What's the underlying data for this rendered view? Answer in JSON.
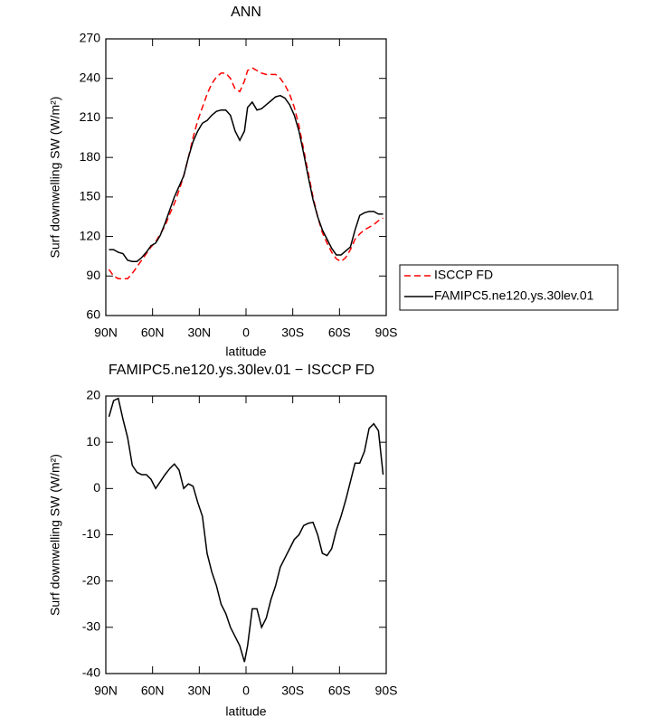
{
  "chart_data": [
    {
      "type": "line",
      "title": "ANN",
      "x_label": "latitude",
      "y_label": "Surf downwelling SW (W/m²)",
      "x": [
        88,
        85,
        82,
        79,
        76,
        73,
        70,
        67,
        64,
        61,
        58,
        55,
        52,
        49,
        46,
        43,
        40,
        37,
        34,
        31,
        28,
        25,
        22,
        19,
        16,
        13,
        10,
        7,
        4,
        1,
        -1,
        -4,
        -7,
        -10,
        -13,
        -16,
        -19,
        -22,
        -25,
        -28,
        -31,
        -34,
        -37,
        -40,
        -43,
        -46,
        -49,
        -52,
        -55,
        -58,
        -61,
        -64,
        -67,
        -70,
        -73,
        -76,
        -79,
        -82,
        -85,
        -88
      ],
      "series": [
        {
          "name": "ISCCP FD",
          "color": "#ff0000",
          "linestyle": "dashed",
          "values": [
            95,
            90,
            88,
            88,
            88,
            92,
            97,
            102,
            107,
            112,
            116,
            122,
            128,
            137,
            145,
            155,
            166,
            180,
            195,
            208,
            218,
            228,
            236,
            241,
            244,
            244,
            240,
            232,
            230,
            238,
            246,
            248,
            246,
            244,
            243,
            243,
            243,
            240,
            235,
            228,
            218,
            204,
            186,
            168,
            150,
            135,
            123,
            115,
            108,
            103,
            101,
            104,
            110,
            118,
            122,
            125,
            127,
            129,
            132,
            134
          ]
        },
        {
          "name": "FAMIPC5.ne120.ys.30lev.01",
          "color": "#000000",
          "linestyle": "solid",
          "values": [
            110,
            110,
            108,
            107,
            102,
            101,
            101,
            104,
            108,
            113,
            115,
            121,
            130,
            140,
            150,
            158,
            166,
            180,
            192,
            200,
            206,
            208,
            212,
            215,
            216,
            216,
            212,
            200,
            193,
            200,
            218,
            222,
            216,
            217,
            220,
            223,
            226,
            227,
            225,
            220,
            212,
            200,
            183,
            165,
            148,
            135,
            125,
            118,
            111,
            106,
            106,
            109,
            112,
            125,
            136,
            138,
            139,
            139,
            137,
            137
          ]
        }
      ],
      "xlim": [
        90,
        -90
      ],
      "xticks": [
        {
          "value": 90,
          "label": "90N"
        },
        {
          "value": 60,
          "label": "60N"
        },
        {
          "value": 30,
          "label": "30N"
        },
        0,
        {
          "value": -30,
          "label": "30S"
        },
        {
          "value": -60,
          "label": "60S"
        },
        {
          "value": -90,
          "label": "90S"
        }
      ],
      "ylim": [
        60,
        270
      ],
      "yticks": [
        60,
        90,
        120,
        150,
        180,
        210,
        240,
        270
      ],
      "legend": "right"
    },
    {
      "type": "line",
      "title": "FAMIPC5.ne120.ys.30lev.01 − ISCCP FD",
      "x_label": "latitude",
      "y_label": "Surf downwelling SW (W/m²)",
      "x": [
        88,
        85,
        82,
        79,
        76,
        73,
        70,
        67,
        64,
        61,
        58,
        55,
        52,
        49,
        46,
        43,
        40,
        37,
        34,
        31,
        28,
        25,
        22,
        19,
        16,
        13,
        10,
        7,
        4,
        1,
        -1,
        -4,
        -7,
        -10,
        -13,
        -16,
        -19,
        -22,
        -25,
        -28,
        -31,
        -34,
        -37,
        -40,
        -43,
        -46,
        -49,
        -52,
        -55,
        -58,
        -61,
        -64,
        -67,
        -70,
        -73,
        -76,
        -79,
        -82,
        -85,
        -88
      ],
      "series": [
        {
          "color": "#000000",
          "linestyle": "solid",
          "values": [
            15.5,
            19,
            19.5,
            15,
            11,
            5,
            3.5,
            3,
            3,
            2,
            0,
            1.5,
            3,
            4.3,
            5.3,
            4,
            0,
            1,
            0.5,
            -3,
            -6,
            -14,
            -18,
            -21,
            -25,
            -27,
            -30,
            -32,
            -34,
            -37.5,
            -34,
            -26,
            -26,
            -30,
            -28,
            -24,
            -21,
            -17,
            -15,
            -13,
            -11,
            -10,
            -8,
            -7.5,
            -7.3,
            -10,
            -14,
            -14.5,
            -13,
            -9,
            -6,
            -2.5,
            1.5,
            5.5,
            5.5,
            8,
            13,
            14,
            12.5,
            3
          ]
        }
      ],
      "xlim": [
        90,
        -90
      ],
      "xticks": [
        {
          "value": 90,
          "label": "90N"
        },
        {
          "value": 60,
          "label": "60N"
        },
        {
          "value": 30,
          "label": "30N"
        },
        0,
        {
          "value": -30,
          "label": "30S"
        },
        {
          "value": -60,
          "label": "60S"
        },
        {
          "value": -90,
          "label": "90S"
        }
      ],
      "ylim": [
        -40,
        20
      ],
      "yticks": [
        -40,
        -30,
        -20,
        -10,
        0,
        10,
        20
      ]
    }
  ]
}
